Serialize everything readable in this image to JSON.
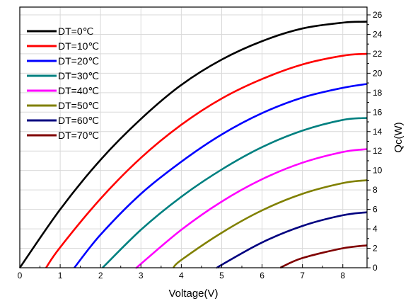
{
  "chart_data": {
    "type": "line",
    "xlabel": "Voltage(V)",
    "ylabel": "Qc(W)",
    "xlim": [
      0,
      8.6
    ],
    "ylim": [
      0,
      26.8
    ],
    "x_ticks": [
      "0",
      "1",
      "2",
      "3",
      "4",
      "5",
      "6",
      "7",
      "8"
    ],
    "x_tick_values": [
      0,
      1,
      2,
      3,
      4,
      5,
      6,
      7,
      8
    ],
    "y_ticks": [
      "0",
      "2",
      "4",
      "6",
      "8",
      "10",
      "12",
      "14",
      "16",
      "18",
      "20",
      "22",
      "24",
      "26"
    ],
    "y_tick_values": [
      0,
      2,
      4,
      6,
      8,
      10,
      12,
      14,
      16,
      18,
      20,
      22,
      24,
      26
    ],
    "y_axis_side": "right",
    "grid": true,
    "legend_position": "top-left",
    "series": [
      {
        "name": "DT=0℃",
        "color": "#000000",
        "x": [
          0.0,
          1.0,
          2.0,
          3.0,
          4.0,
          5.0,
          6.0,
          7.0,
          8.0,
          8.6
        ],
        "y": [
          0.0,
          6.0,
          11.1,
          15.3,
          18.8,
          21.4,
          23.3,
          24.6,
          25.2,
          25.3
        ]
      },
      {
        "name": "DT=10℃",
        "color": "#ff0000",
        "x": [
          0.65,
          1.0,
          2.0,
          3.0,
          4.0,
          5.0,
          6.0,
          7.0,
          8.0,
          8.6
        ],
        "y": [
          0.0,
          2.1,
          7.1,
          11.3,
          14.7,
          17.4,
          19.4,
          20.9,
          21.8,
          22.0
        ]
      },
      {
        "name": "DT=20℃",
        "color": "#0000ff",
        "x": [
          1.35,
          2.0,
          3.0,
          4.0,
          5.0,
          6.0,
          7.0,
          8.0,
          8.6
        ],
        "y": [
          0.0,
          3.4,
          7.6,
          10.9,
          13.7,
          15.9,
          17.5,
          18.5,
          18.9
        ]
      },
      {
        "name": "DT=30℃",
        "color": "#008080",
        "x": [
          2.05,
          3.0,
          4.0,
          5.0,
          6.0,
          7.0,
          8.0,
          8.6
        ],
        "y": [
          0.0,
          3.9,
          7.3,
          10.1,
          12.4,
          14.1,
          15.2,
          15.4
        ]
      },
      {
        "name": "DT=40℃",
        "color": "#ff00ff",
        "x": [
          2.9,
          3.0,
          4.0,
          5.0,
          6.0,
          7.0,
          8.0,
          8.6
        ],
        "y": [
          0.0,
          0.4,
          3.9,
          6.8,
          9.1,
          10.8,
          11.9,
          12.2
        ]
      },
      {
        "name": "DT=50℃",
        "color": "#808000",
        "x": [
          3.8,
          4.0,
          5.0,
          6.0,
          7.0,
          8.0,
          8.6
        ],
        "y": [
          0.0,
          0.8,
          3.6,
          5.9,
          7.6,
          8.7,
          9.0
        ]
      },
      {
        "name": "DT=60℃",
        "color": "#000080",
        "x": [
          4.9,
          5.0,
          6.0,
          7.0,
          8.0,
          8.6
        ],
        "y": [
          0.0,
          0.3,
          2.6,
          4.3,
          5.4,
          5.7
        ]
      },
      {
        "name": "DT=70℃",
        "color": "#800000",
        "x": [
          6.45,
          7.0,
          8.0,
          8.6
        ],
        "y": [
          0.0,
          1.0,
          2.0,
          2.3
        ]
      }
    ]
  }
}
